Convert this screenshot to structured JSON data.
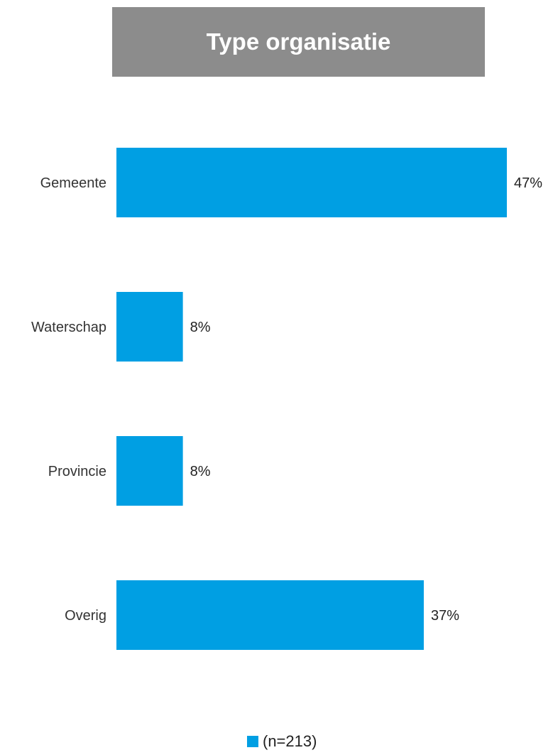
{
  "chart_data": {
    "type": "bar",
    "orientation": "horizontal",
    "title": "Type organisatie",
    "categories": [
      "Gemeente",
      "Waterschap",
      "Provincie",
      "Overig"
    ],
    "series": [
      {
        "name": "(n=213)",
        "values": [
          47,
          8,
          8,
          37
        ],
        "labels": [
          "47%",
          "8%",
          "8%",
          "37%"
        ]
      }
    ],
    "xlim": [
      0,
      47
    ],
    "grid": false,
    "legend_position": "bottom-center",
    "colors": {
      "bar": "#009fe3",
      "title_background": "#8c8c8c",
      "title_text": "#ffffff"
    }
  }
}
